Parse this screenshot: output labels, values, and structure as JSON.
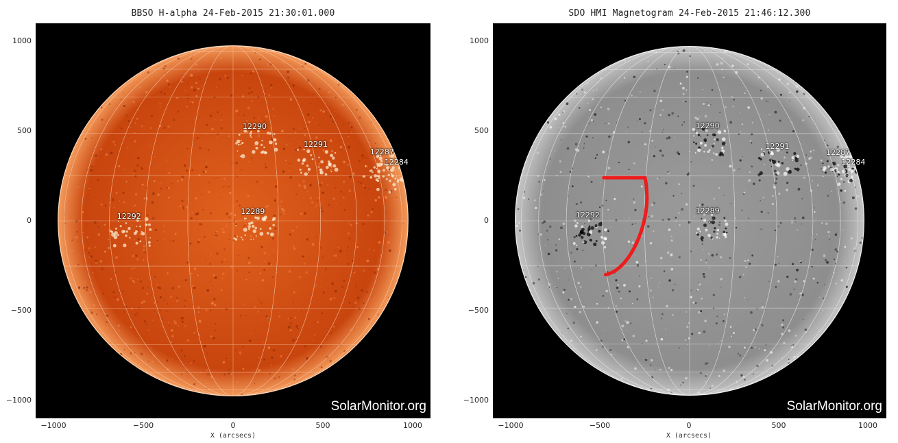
{
  "panels": [
    {
      "id": "halpha",
      "title": "BBSO H-alpha 24-Feb-2015 21:30:01.000",
      "watermark": "SolarMonitor.org",
      "xlabel": "X (arcsecs)",
      "disk_colors": {
        "inner": "#e0611e",
        "mid": "#c8450e",
        "edge": "#f39a5a"
      },
      "regions": [
        {
          "label": "12290",
          "x": 130,
          "y": 520
        },
        {
          "label": "12291",
          "x": 470,
          "y": 420
        },
        {
          "label": "12287",
          "x": 840,
          "y": 380
        },
        {
          "label": "12284",
          "x": 920,
          "y": 320
        },
        {
          "label": "12292",
          "x": -570,
          "y": 20
        },
        {
          "label": "12289",
          "x": 120,
          "y": 45
        }
      ]
    },
    {
      "id": "magnetogram",
      "title": "SDO HMI Magnetogram 24-Feb-2015 21:46:12.300",
      "watermark": "SolarMonitor.org",
      "xlabel": "X (arcsecs)",
      "disk_colors": {
        "inner": "#9a9a9a",
        "mid": "#8e8e8e",
        "edge": "#c4c4c4"
      },
      "regions": [
        {
          "label": "12290",
          "x": 110,
          "y": 525
        },
        {
          "label": "12291",
          "x": 500,
          "y": 410
        },
        {
          "label": "12287",
          "x": 840,
          "y": 375
        },
        {
          "label": "12284",
          "x": 925,
          "y": 320
        },
        {
          "label": "12292",
          "x": -560,
          "y": 25
        },
        {
          "label": "12289",
          "x": 110,
          "y": 50
        }
      ],
      "annotation": {
        "color": "#ee1c1c",
        "type": "curve"
      }
    }
  ],
  "axis": {
    "xticks": [
      "−1000",
      "−500",
      "0",
      "500",
      "1000"
    ],
    "yticks": [
      "1000",
      "500",
      "0",
      "−500",
      "−1000"
    ],
    "range": [
      -1100,
      1100
    ]
  }
}
